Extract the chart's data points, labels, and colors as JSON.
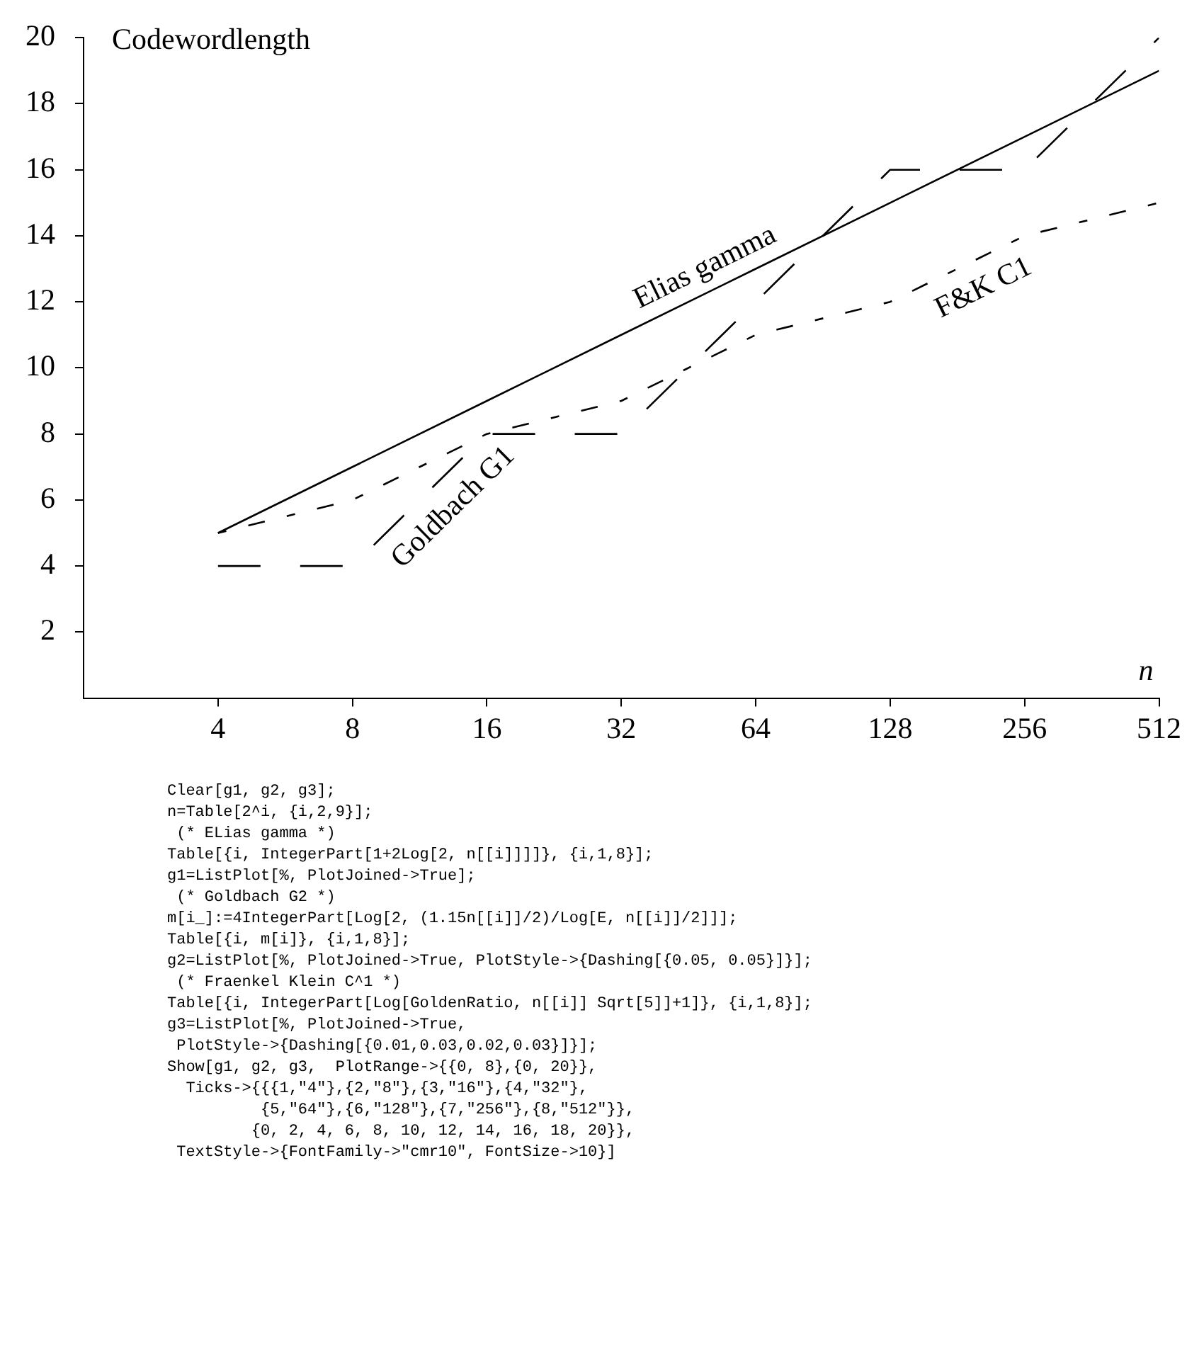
{
  "chart_data": {
    "type": "line",
    "ylabel": "Codewordlength",
    "xlabel": "n",
    "x": [
      4,
      8,
      16,
      32,
      64,
      128,
      256,
      512
    ],
    "log": "x",
    "xlim": [
      2,
      512
    ],
    "xticks": [
      4,
      8,
      16,
      32,
      64,
      128,
      256,
      512
    ],
    "ylim": [
      0,
      20
    ],
    "yticks": [
      2,
      4,
      6,
      8,
      10,
      12,
      14,
      16,
      18,
      20
    ],
    "grid": false,
    "legend": false,
    "marker": "none",
    "series": [
      {
        "name": "Elias gamma",
        "color": "#000000",
        "line_style": "solid",
        "values": [
          5,
          7,
          9,
          11,
          13,
          15,
          17,
          19
        ]
      },
      {
        "name": "Goldbach G1",
        "color": "#000000",
        "line_style": "dashed",
        "values": [
          4,
          4,
          8,
          8,
          12,
          16,
          16,
          20
        ]
      },
      {
        "name": "F&K C1",
        "color": "#000000",
        "line_style": "dotted",
        "values": [
          5,
          6,
          8,
          9,
          11,
          12,
          14,
          15
        ]
      }
    ],
    "annotations": [
      "Clear[g1, g2, g3];\nn=Table[2^i, {i,2,9}];\n (* ELias gamma *)\nTable[{i, IntegerPart[1+2Log[2, n[[i]]]]}, {i,1,8}];\ng1=ListPlot[%, PlotJoined->True];\n (* Goldbach G2 *)\nm[i_]:=4IntegerPart[Log[2, (1.15n[[i]]/2)/Log[E, n[[i]]/2]]];\nTable[{i, m[i]}, {i,1,8}];\ng2=ListPlot[%, PlotJoined->True, PlotStyle->{Dashing[{0.05, 0.05}]}];\n (* Fraenkel Klein C^1 *)\nTable[{i, IntegerPart[Log[GoldenRatio, n[[i]] Sqrt[5]]+1]}, {i,1,8}];\ng3=ListPlot[%, PlotJoined->True,\n PlotStyle->{Dashing[{0.01,0.03,0.02,0.03}]}];\nShow[g1, g2, g3,  PlotRange->{{0, 8},{0, 20}},\n  Ticks->{{{1,\"4\"},{2,\"8\"},{3,\"16\"},{4,\"32\"},\n          {5,\"64\"},{6,\"128\"},{7,\"256\"},{8,\"512\"}},\n         {0, 2, 4, 6, 8, 10, 12, 14, 16, 18, 20}},\n TextStyle->{FontFamily->\"cmr10\", FontSize->10}]"
    ]
  }
}
